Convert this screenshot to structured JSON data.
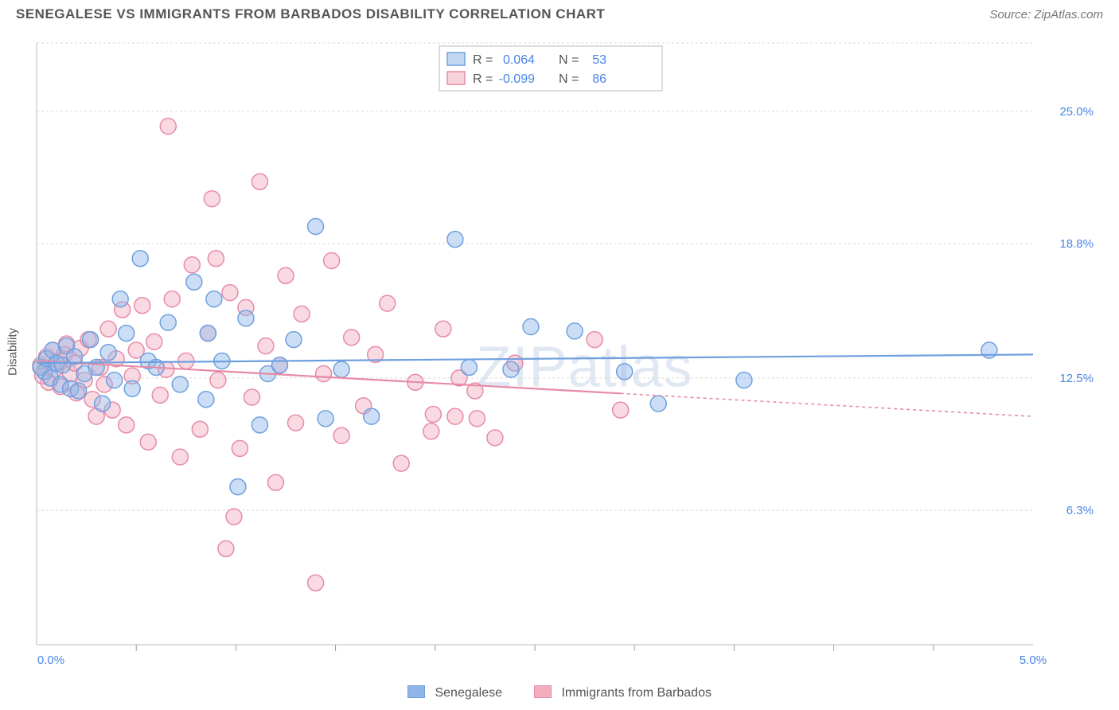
{
  "header": {
    "title": "SENEGALESE VS IMMIGRANTS FROM BARBADOS DISABILITY CORRELATION CHART",
    "source": "Source: ZipAtlas.com"
  },
  "watermark": "ZIPatlas",
  "chart": {
    "type": "scatter",
    "ylabel": "Disability",
    "xlim": [
      0.0,
      5.0
    ],
    "ylim": [
      0.0,
      28.2
    ],
    "y_gridlines": [
      6.3,
      12.5,
      18.8,
      25.0
    ],
    "y_tick_labels": [
      "6.3%",
      "12.5%",
      "18.8%",
      "25.0%"
    ],
    "x_minor_ticks": [
      0.5,
      1.0,
      1.5,
      2.0,
      2.5,
      3.0,
      3.5,
      4.0,
      4.5
    ],
    "x_tick_labels_left": "0.0%",
    "x_tick_labels_right": "5.0%",
    "background_color": "#ffffff",
    "grid_color": "#d9d9d9",
    "plot_border_color": "#bbbbbb",
    "axis_label_color": "#4a86e8",
    "marker_radius": 10,
    "marker_stroke_width": 1.5,
    "regression_line_width": 2.2
  },
  "series": {
    "a": {
      "label": "Senegalese",
      "color_stroke": "#6fa0de",
      "color_fill": "#8fb6e8",
      "r_label": "R =",
      "r_value": "0.064",
      "n_label": "N =",
      "n_value": "53",
      "reg_y_at_xmin": 13.2,
      "reg_y_at_xmax": 13.6,
      "reg_solid_to_x": 5.0,
      "points": [
        [
          0.02,
          13.0
        ],
        [
          0.04,
          12.8
        ],
        [
          0.05,
          13.4
        ],
        [
          0.07,
          12.5
        ],
        [
          0.08,
          13.8
        ],
        [
          0.1,
          13.2
        ],
        [
          0.12,
          12.2
        ],
        [
          0.13,
          13.1
        ],
        [
          0.15,
          14.0
        ],
        [
          0.17,
          12.0
        ],
        [
          0.19,
          13.5
        ],
        [
          0.21,
          11.9
        ],
        [
          0.24,
          12.7
        ],
        [
          0.27,
          14.3
        ],
        [
          0.3,
          13.0
        ],
        [
          0.33,
          11.3
        ],
        [
          0.36,
          13.7
        ],
        [
          0.39,
          12.4
        ],
        [
          0.42,
          16.2
        ],
        [
          0.45,
          14.6
        ],
        [
          0.48,
          12.0
        ],
        [
          0.52,
          18.1
        ],
        [
          0.56,
          13.3
        ],
        [
          0.6,
          13.0
        ],
        [
          0.66,
          15.1
        ],
        [
          0.72,
          12.2
        ],
        [
          0.79,
          17.0
        ],
        [
          0.85,
          11.5
        ],
        [
          0.86,
          14.6
        ],
        [
          0.89,
          16.2
        ],
        [
          0.93,
          13.3
        ],
        [
          1.01,
          7.4
        ],
        [
          1.05,
          15.3
        ],
        [
          1.12,
          10.3
        ],
        [
          1.16,
          12.7
        ],
        [
          1.22,
          13.1
        ],
        [
          1.29,
          14.3
        ],
        [
          1.4,
          19.6
        ],
        [
          1.45,
          10.6
        ],
        [
          1.53,
          12.9
        ],
        [
          1.68,
          10.7
        ],
        [
          2.1,
          19.0
        ],
        [
          2.17,
          13.0
        ],
        [
          2.38,
          12.9
        ],
        [
          2.48,
          14.9
        ],
        [
          2.7,
          14.7
        ],
        [
          2.95,
          12.8
        ],
        [
          3.12,
          11.3
        ],
        [
          3.55,
          12.4
        ],
        [
          4.78,
          13.8
        ]
      ]
    },
    "b": {
      "label": "Immigrants from Barbados",
      "color_stroke": "#e78ba7",
      "color_fill": "#f2aebe",
      "r_label": "R =",
      "r_value": "-0.099",
      "n_label": "N =",
      "n_value": "86",
      "reg_y_at_xmin": 13.3,
      "reg_y_at_xmax": 10.7,
      "reg_solid_to_x": 2.93,
      "points": [
        [
          0.02,
          13.1
        ],
        [
          0.03,
          12.6
        ],
        [
          0.05,
          13.5
        ],
        [
          0.06,
          12.3
        ],
        [
          0.08,
          13.8
        ],
        [
          0.09,
          12.9
        ],
        [
          0.11,
          13.3
        ],
        [
          0.12,
          12.1
        ],
        [
          0.14,
          13.6
        ],
        [
          0.15,
          14.1
        ],
        [
          0.17,
          12.7
        ],
        [
          0.19,
          13.2
        ],
        [
          0.2,
          11.8
        ],
        [
          0.22,
          13.9
        ],
        [
          0.24,
          12.4
        ],
        [
          0.26,
          14.3
        ],
        [
          0.28,
          11.5
        ],
        [
          0.3,
          10.7
        ],
        [
          0.32,
          13.0
        ],
        [
          0.34,
          12.2
        ],
        [
          0.36,
          14.8
        ],
        [
          0.38,
          11.0
        ],
        [
          0.4,
          13.4
        ],
        [
          0.43,
          15.7
        ],
        [
          0.45,
          10.3
        ],
        [
          0.48,
          12.6
        ],
        [
          0.5,
          13.8
        ],
        [
          0.53,
          15.9
        ],
        [
          0.56,
          9.5
        ],
        [
          0.59,
          14.2
        ],
        [
          0.62,
          11.7
        ],
        [
          0.65,
          12.9
        ],
        [
          0.66,
          24.3
        ],
        [
          0.68,
          16.2
        ],
        [
          0.72,
          8.8
        ],
        [
          0.75,
          13.3
        ],
        [
          0.78,
          17.8
        ],
        [
          0.82,
          10.1
        ],
        [
          0.86,
          14.6
        ],
        [
          0.88,
          20.9
        ],
        [
          0.9,
          18.1
        ],
        [
          0.91,
          12.4
        ],
        [
          0.95,
          4.5
        ],
        [
          0.97,
          16.5
        ],
        [
          0.99,
          6.0
        ],
        [
          1.02,
          9.2
        ],
        [
          1.05,
          15.8
        ],
        [
          1.08,
          11.6
        ],
        [
          1.12,
          21.7
        ],
        [
          1.15,
          14.0
        ],
        [
          1.2,
          7.6
        ],
        [
          1.22,
          13.1
        ],
        [
          1.25,
          17.3
        ],
        [
          1.3,
          10.4
        ],
        [
          1.33,
          15.5
        ],
        [
          1.4,
          2.9
        ],
        [
          1.44,
          12.7
        ],
        [
          1.48,
          18.0
        ],
        [
          1.53,
          9.8
        ],
        [
          1.58,
          14.4
        ],
        [
          1.64,
          11.2
        ],
        [
          1.7,
          13.6
        ],
        [
          1.76,
          16.0
        ],
        [
          1.83,
          8.5
        ],
        [
          1.9,
          12.3
        ],
        [
          1.98,
          10.0
        ],
        [
          1.99,
          10.8
        ],
        [
          2.04,
          14.8
        ],
        [
          2.1,
          10.7
        ],
        [
          2.12,
          12.5
        ],
        [
          2.2,
          11.9
        ],
        [
          2.21,
          10.6
        ],
        [
          2.3,
          9.7
        ],
        [
          2.4,
          13.2
        ],
        [
          2.8,
          14.3
        ],
        [
          2.93,
          11.0
        ]
      ]
    }
  },
  "top_legend": {
    "box_border": "#bbbbbb"
  }
}
